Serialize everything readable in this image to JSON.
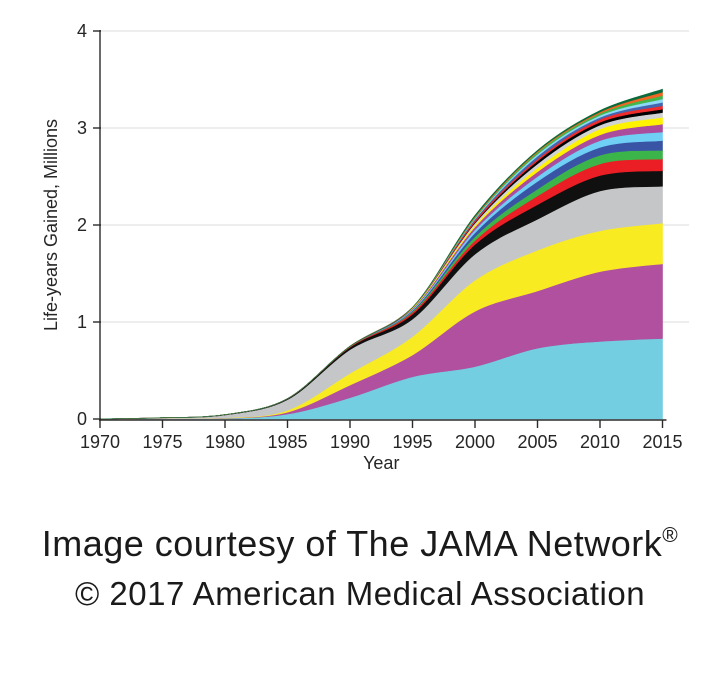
{
  "chart": {
    "ylabel": "Life-years Gained, Millions",
    "xlabel": "Year",
    "x_tick_labels": [
      "1970",
      "1975",
      "1980",
      "1985",
      "1990",
      "1995",
      "2000",
      "2005",
      "2010",
      "2015"
    ],
    "y_tick_labels": [
      "0",
      "1",
      "2",
      "3",
      "4"
    ],
    "axis_color": "#2b2b2b",
    "gridline_color": "#dcdcdc",
    "tick_label_color": "#262626"
  },
  "chart_data": {
    "type": "area",
    "stacked": true,
    "title": "",
    "xlabel": "Year",
    "ylabel": "Life-years Gained, Millions",
    "x": [
      1970,
      1975,
      1980,
      1985,
      1990,
      1995,
      2000,
      2005,
      2010,
      2015
    ],
    "xlim": [
      1970,
      2015
    ],
    "ylim": [
      0,
      4
    ],
    "grid": "horizontal",
    "legend": "none",
    "total_at_2015": 3.4,
    "series": [
      {
        "name": "cyan",
        "color": "#74CEE1",
        "values": [
          0,
          0.002,
          0.005,
          0.05,
          0.22,
          0.435,
          0.54,
          0.73,
          0.8,
          0.83
        ]
      },
      {
        "name": "magenta",
        "color": "#B0509E",
        "values": [
          0,
          0.001,
          0.003,
          0.02,
          0.13,
          0.225,
          0.57,
          0.59,
          0.72,
          0.77
        ]
      },
      {
        "name": "yellow",
        "color": "#F9EB21",
        "values": [
          0,
          0.001,
          0.003,
          0.02,
          0.12,
          0.19,
          0.32,
          0.42,
          0.42,
          0.42
        ]
      },
      {
        "name": "silver",
        "color": "#C5C6C8",
        "values": [
          0,
          0.008,
          0.03,
          0.11,
          0.245,
          0.18,
          0.27,
          0.32,
          0.41,
          0.38
        ]
      },
      {
        "name": "black",
        "color": "#101010",
        "values": [
          0,
          0.001,
          0.004,
          0.01,
          0.025,
          0.05,
          0.1,
          0.15,
          0.16,
          0.16
        ]
      },
      {
        "name": "red",
        "color": "#EC1E25",
        "values": [
          0,
          0,
          0,
          0,
          0.005,
          0.02,
          0.04,
          0.09,
          0.12,
          0.12
        ]
      },
      {
        "name": "green",
        "color": "#3BB54A",
        "values": [
          0,
          0,
          0,
          0,
          0.003,
          0.01,
          0.04,
          0.07,
          0.09,
          0.09
        ]
      },
      {
        "name": "royal-blue",
        "color": "#3A54A5",
        "values": [
          0,
          0,
          0,
          0,
          0.002,
          0.01,
          0.04,
          0.08,
          0.08,
          0.1
        ]
      },
      {
        "name": "sky-blue",
        "color": "#6FCFF5",
        "values": [
          0,
          0,
          0,
          0,
          0,
          0.01,
          0.03,
          0.05,
          0.07,
          0.09
        ]
      },
      {
        "name": "magenta-2",
        "color": "#AC4C9C",
        "values": [
          0,
          0,
          0,
          0,
          0,
          0.01,
          0.03,
          0.05,
          0.06,
          0.08
        ]
      },
      {
        "name": "yellow-2",
        "color": "#FFF200",
        "values": [
          0,
          0,
          0,
          0,
          0,
          0.01,
          0.02,
          0.04,
          0.06,
          0.07
        ]
      },
      {
        "name": "silver-2",
        "color": "#D0D2D3",
        "values": [
          0,
          0,
          0,
          0,
          0,
          0,
          0.02,
          0.04,
          0.04,
          0.05
        ]
      },
      {
        "name": "black-2",
        "color": "#000000",
        "values": [
          0,
          0,
          0,
          0,
          0,
          0,
          0.01,
          0.03,
          0.03,
          0.035
        ]
      },
      {
        "name": "red-2",
        "color": "#EE2C2C",
        "values": [
          0,
          0,
          0,
          0,
          0,
          0,
          0.02,
          0.02,
          0.03,
          0.035
        ]
      },
      {
        "name": "royal-blue-2",
        "color": "#4466B0",
        "values": [
          0,
          0,
          0,
          0,
          0,
          0,
          0.01,
          0.03,
          0.02,
          0.035
        ]
      },
      {
        "name": "sky-blue-2",
        "color": "#8ED8F8",
        "values": [
          0,
          0,
          0,
          0,
          0,
          0,
          0.01,
          0.02,
          0.02,
          0.035
        ]
      },
      {
        "name": "green-2",
        "color": "#42B649",
        "values": [
          0,
          0,
          0,
          0,
          0,
          0,
          0.01,
          0.02,
          0.02,
          0.035
        ]
      },
      {
        "name": "orange",
        "color": "#F26522",
        "values": [
          0,
          0,
          0,
          0,
          0,
          0,
          0.01,
          0.01,
          0.015,
          0.035
        ]
      },
      {
        "name": "dark-green",
        "color": "#0B6B3A",
        "values": [
          0,
          0,
          0,
          0,
          0,
          0,
          0.01,
          0.01,
          0.015,
          0.03
        ]
      }
    ]
  },
  "caption": {
    "line1": "Image courtesy of The JAMA Network",
    "registered_symbol": "®",
    "line2": "© 2017 American Medical Association"
  }
}
